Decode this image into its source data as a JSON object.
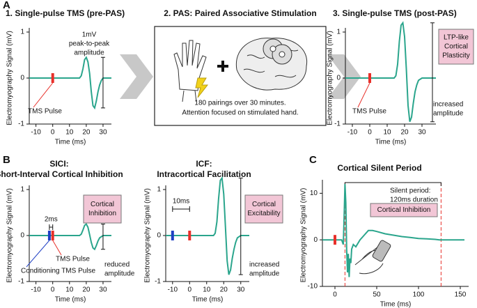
{
  "chart_data": [
    {
      "type": "line",
      "panel": "A",
      "title": "1. Single-pulse TMS (pre-PAS)",
      "xlabel": "Time (ms)",
      "ylabel": "Electromyography Signal (mV)",
      "xlim": [
        -14,
        35
      ],
      "ylim": [
        -1,
        1
      ],
      "xticks": [
        -10,
        0,
        10,
        20,
        30
      ],
      "yticks": [
        -1,
        0,
        1
      ],
      "color": "#2aa58c",
      "x": [
        -14,
        16,
        17,
        18,
        19,
        20,
        21,
        22,
        23,
        24,
        25,
        26,
        27,
        28,
        29,
        30,
        32,
        35
      ],
      "values": [
        0,
        0,
        0.05,
        0.2,
        0.4,
        0.45,
        0.35,
        0.1,
        -0.3,
        -0.6,
        -0.65,
        -0.5,
        -0.3,
        -0.15,
        -0.05,
        0,
        0,
        0
      ],
      "markers": [
        {
          "x": 0,
          "color": "#e8302a",
          "label": "TMS Pulse"
        }
      ],
      "amplitude_bar": {
        "x": 30,
        "y": [
          -0.65,
          0.45
        ],
        "label": [
          "1mV",
          "peak-to-peak",
          "amplitude"
        ]
      }
    },
    {
      "type": "line",
      "title": "3. Single-pulse TMS (post-PAS)",
      "xlabel": "Time (ms)",
      "ylabel": "Electromyography Signal (mV)",
      "xlim": [
        -14,
        38
      ],
      "ylim": [
        -1,
        1
      ],
      "xticks": [
        -10,
        0,
        10,
        20,
        30
      ],
      "yticks": [
        -1,
        0,
        1
      ],
      "color": "#2aa58c",
      "x": [
        -14,
        14,
        15,
        16,
        17,
        18,
        19,
        20,
        21,
        22,
        23,
        24,
        25,
        26,
        27,
        28,
        30,
        33,
        38
      ],
      "values": [
        0,
        0,
        0.05,
        0.3,
        0.8,
        1.15,
        1.2,
        0.9,
        0.2,
        -0.6,
        -0.95,
        -0.85,
        -0.55,
        -0.3,
        -0.15,
        -0.05,
        0,
        0,
        0
      ],
      "markers": [
        {
          "x": 0,
          "color": "#e8302a",
          "label": "TMS Pulse"
        }
      ],
      "amplitude_bar": {
        "x": 36,
        "y": [
          -0.95,
          1.2
        ],
        "label": [
          "increased",
          "amplitude"
        ]
      },
      "box": [
        "LTP-like",
        "Cortical",
        "Plasticity"
      ]
    },
    {
      "type": "line",
      "panel": "B",
      "title": "SICI:",
      "subtitle": "Short-Interval Cortical Inhibition",
      "xlabel": "Time (ms)",
      "ylabel": "Electromyography Signal (mV)",
      "xlim": [
        -14,
        35
      ],
      "ylim": [
        -1,
        1
      ],
      "xticks": [
        -10,
        0,
        10,
        20,
        30
      ],
      "yticks": [
        -1,
        0,
        1
      ],
      "color": "#2aa58c",
      "x": [
        -14,
        16,
        17,
        18,
        19,
        20,
        21,
        22,
        23,
        24,
        25,
        26,
        27,
        28,
        30,
        35
      ],
      "values": [
        0,
        0,
        0.03,
        0.12,
        0.22,
        0.25,
        0.18,
        0.02,
        -0.15,
        -0.27,
        -0.3,
        -0.22,
        -0.12,
        -0.05,
        0,
        0
      ],
      "markers": [
        {
          "x": -2,
          "color": "#1f3fc4",
          "label": "Conditioning TMS Pulse"
        },
        {
          "x": 0,
          "color": "#e8302a",
          "label": "TMS Pulse"
        }
      ],
      "interval": {
        "from": -2,
        "to": 0,
        "label": "2ms"
      },
      "amplitude_bar": {
        "x": 30,
        "y": [
          -0.3,
          0.25
        ],
        "label": [
          "reduced",
          "amplitude"
        ]
      },
      "box": [
        "Cortical",
        "Inhibition"
      ]
    },
    {
      "type": "line",
      "title": "ICF:",
      "subtitle": "Intracortical Facilitation",
      "xlabel": "Time (ms)",
      "ylabel": "Electromyography Signal (mV)",
      "xlim": [
        -14,
        35
      ],
      "ylim": [
        -1,
        1
      ],
      "xticks": [
        -10,
        0,
        10,
        20,
        30
      ],
      "yticks": [
        -1,
        0,
        1
      ],
      "color": "#2aa58c",
      "x": [
        -14,
        14,
        15,
        16,
        17,
        18,
        19,
        20,
        21,
        22,
        23,
        24,
        25,
        26,
        27,
        28,
        30,
        35
      ],
      "values": [
        0,
        0,
        0.05,
        0.3,
        0.8,
        1.2,
        1.25,
        0.9,
        0.2,
        -0.55,
        -0.85,
        -0.75,
        -0.5,
        -0.3,
        -0.15,
        -0.05,
        0,
        0
      ],
      "markers": [
        {
          "x": -10,
          "color": "#1f3fc4"
        },
        {
          "x": 0,
          "color": "#e8302a"
        }
      ],
      "interval": {
        "from": -10,
        "to": 0,
        "label": "10ms"
      },
      "amplitude_bar": {
        "x": 30,
        "y": [
          -0.85,
          1.25
        ],
        "label": [
          "increased",
          "amplitude"
        ]
      },
      "box": [
        "Cortical",
        "Excitability"
      ]
    },
    {
      "type": "line",
      "panel": "C",
      "title": "Cortical Silent Period",
      "xlabel": "Time (ms)",
      "ylabel": "Electromyography Signal (mV)",
      "xlim": [
        -15,
        160
      ],
      "ylim": [
        -10,
        12
      ],
      "xticks": [
        0,
        50,
        100,
        150
      ],
      "yticks": [
        -10,
        0,
        10
      ],
      "color": "#2aa58c",
      "x": [
        -15,
        8,
        10,
        11,
        12,
        13,
        14,
        15,
        16,
        17,
        18,
        19,
        20,
        22,
        25,
        30,
        35,
        40,
        45,
        50,
        60,
        70,
        80,
        90,
        100,
        110,
        120,
        125,
        130,
        140,
        150,
        155
      ],
      "values": [
        0,
        0,
        -1,
        5,
        12,
        8,
        -2,
        -7,
        -3,
        -8,
        -4,
        -5,
        -2,
        -1,
        -1.5,
        0,
        1,
        2,
        2,
        1.8,
        1.3,
        1,
        0.7,
        0.5,
        0.3,
        0.2,
        0.1,
        0,
        0,
        0,
        0,
        0
      ],
      "markers": [
        {
          "x": 0,
          "color": "#e8302a"
        }
      ],
      "silent_period": {
        "from": 12,
        "to": 127,
        "label": [
          "Silent period:",
          "120ms duration"
        ]
      },
      "box": [
        "Cortical Inhibition"
      ]
    }
  ],
  "pas": {
    "title": "2. PAS: Paired Associative Stimulation",
    "caption": [
      "180 pairings over 30 minutes.",
      "Attention focused on stimulated hand."
    ]
  }
}
